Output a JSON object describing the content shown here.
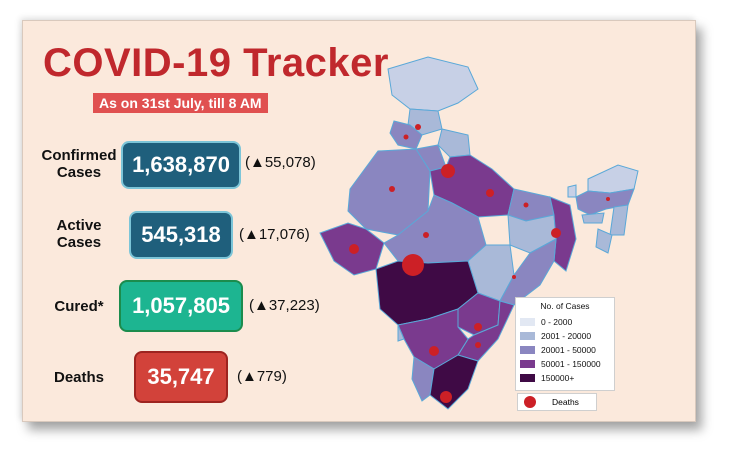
{
  "title": "COVID-19 Tracker",
  "subtitle": "As on 31st July, till 8 AM",
  "stats": [
    {
      "label_line1": "Confirmed",
      "label_line2": "Cases",
      "value": "1,638,870",
      "delta": "(▲55,078)",
      "color": "#1f5f7c"
    },
    {
      "label_line1": "Active",
      "label_line2": "Cases",
      "value": "545,318",
      "delta": "(▲17,076)",
      "color": "#1f5f7c"
    },
    {
      "label_line1": "Cured*",
      "label_line2": "",
      "value": "1,057,805",
      "delta": "(▲37,223)",
      "color": "#1db591"
    },
    {
      "label_line1": "Deaths",
      "label_line2": "",
      "value": "35,747",
      "delta": "(▲779)",
      "color": "#d2423a"
    }
  ],
  "legend": {
    "title": "No. of Cases",
    "items": [
      {
        "label": "0 - 2000",
        "color": "#e2e8f3"
      },
      {
        "label": "2001 - 20000",
        "color": "#a9b9d8"
      },
      {
        "label": "20001 - 50000",
        "color": "#8a86c0"
      },
      {
        "label": "50001 - 150000",
        "color": "#7a3a8e"
      },
      {
        "label": "150000+",
        "color": "#3f0a45"
      }
    ],
    "deaths_label": "Deaths",
    "deaths_color": "#cc2026"
  }
}
